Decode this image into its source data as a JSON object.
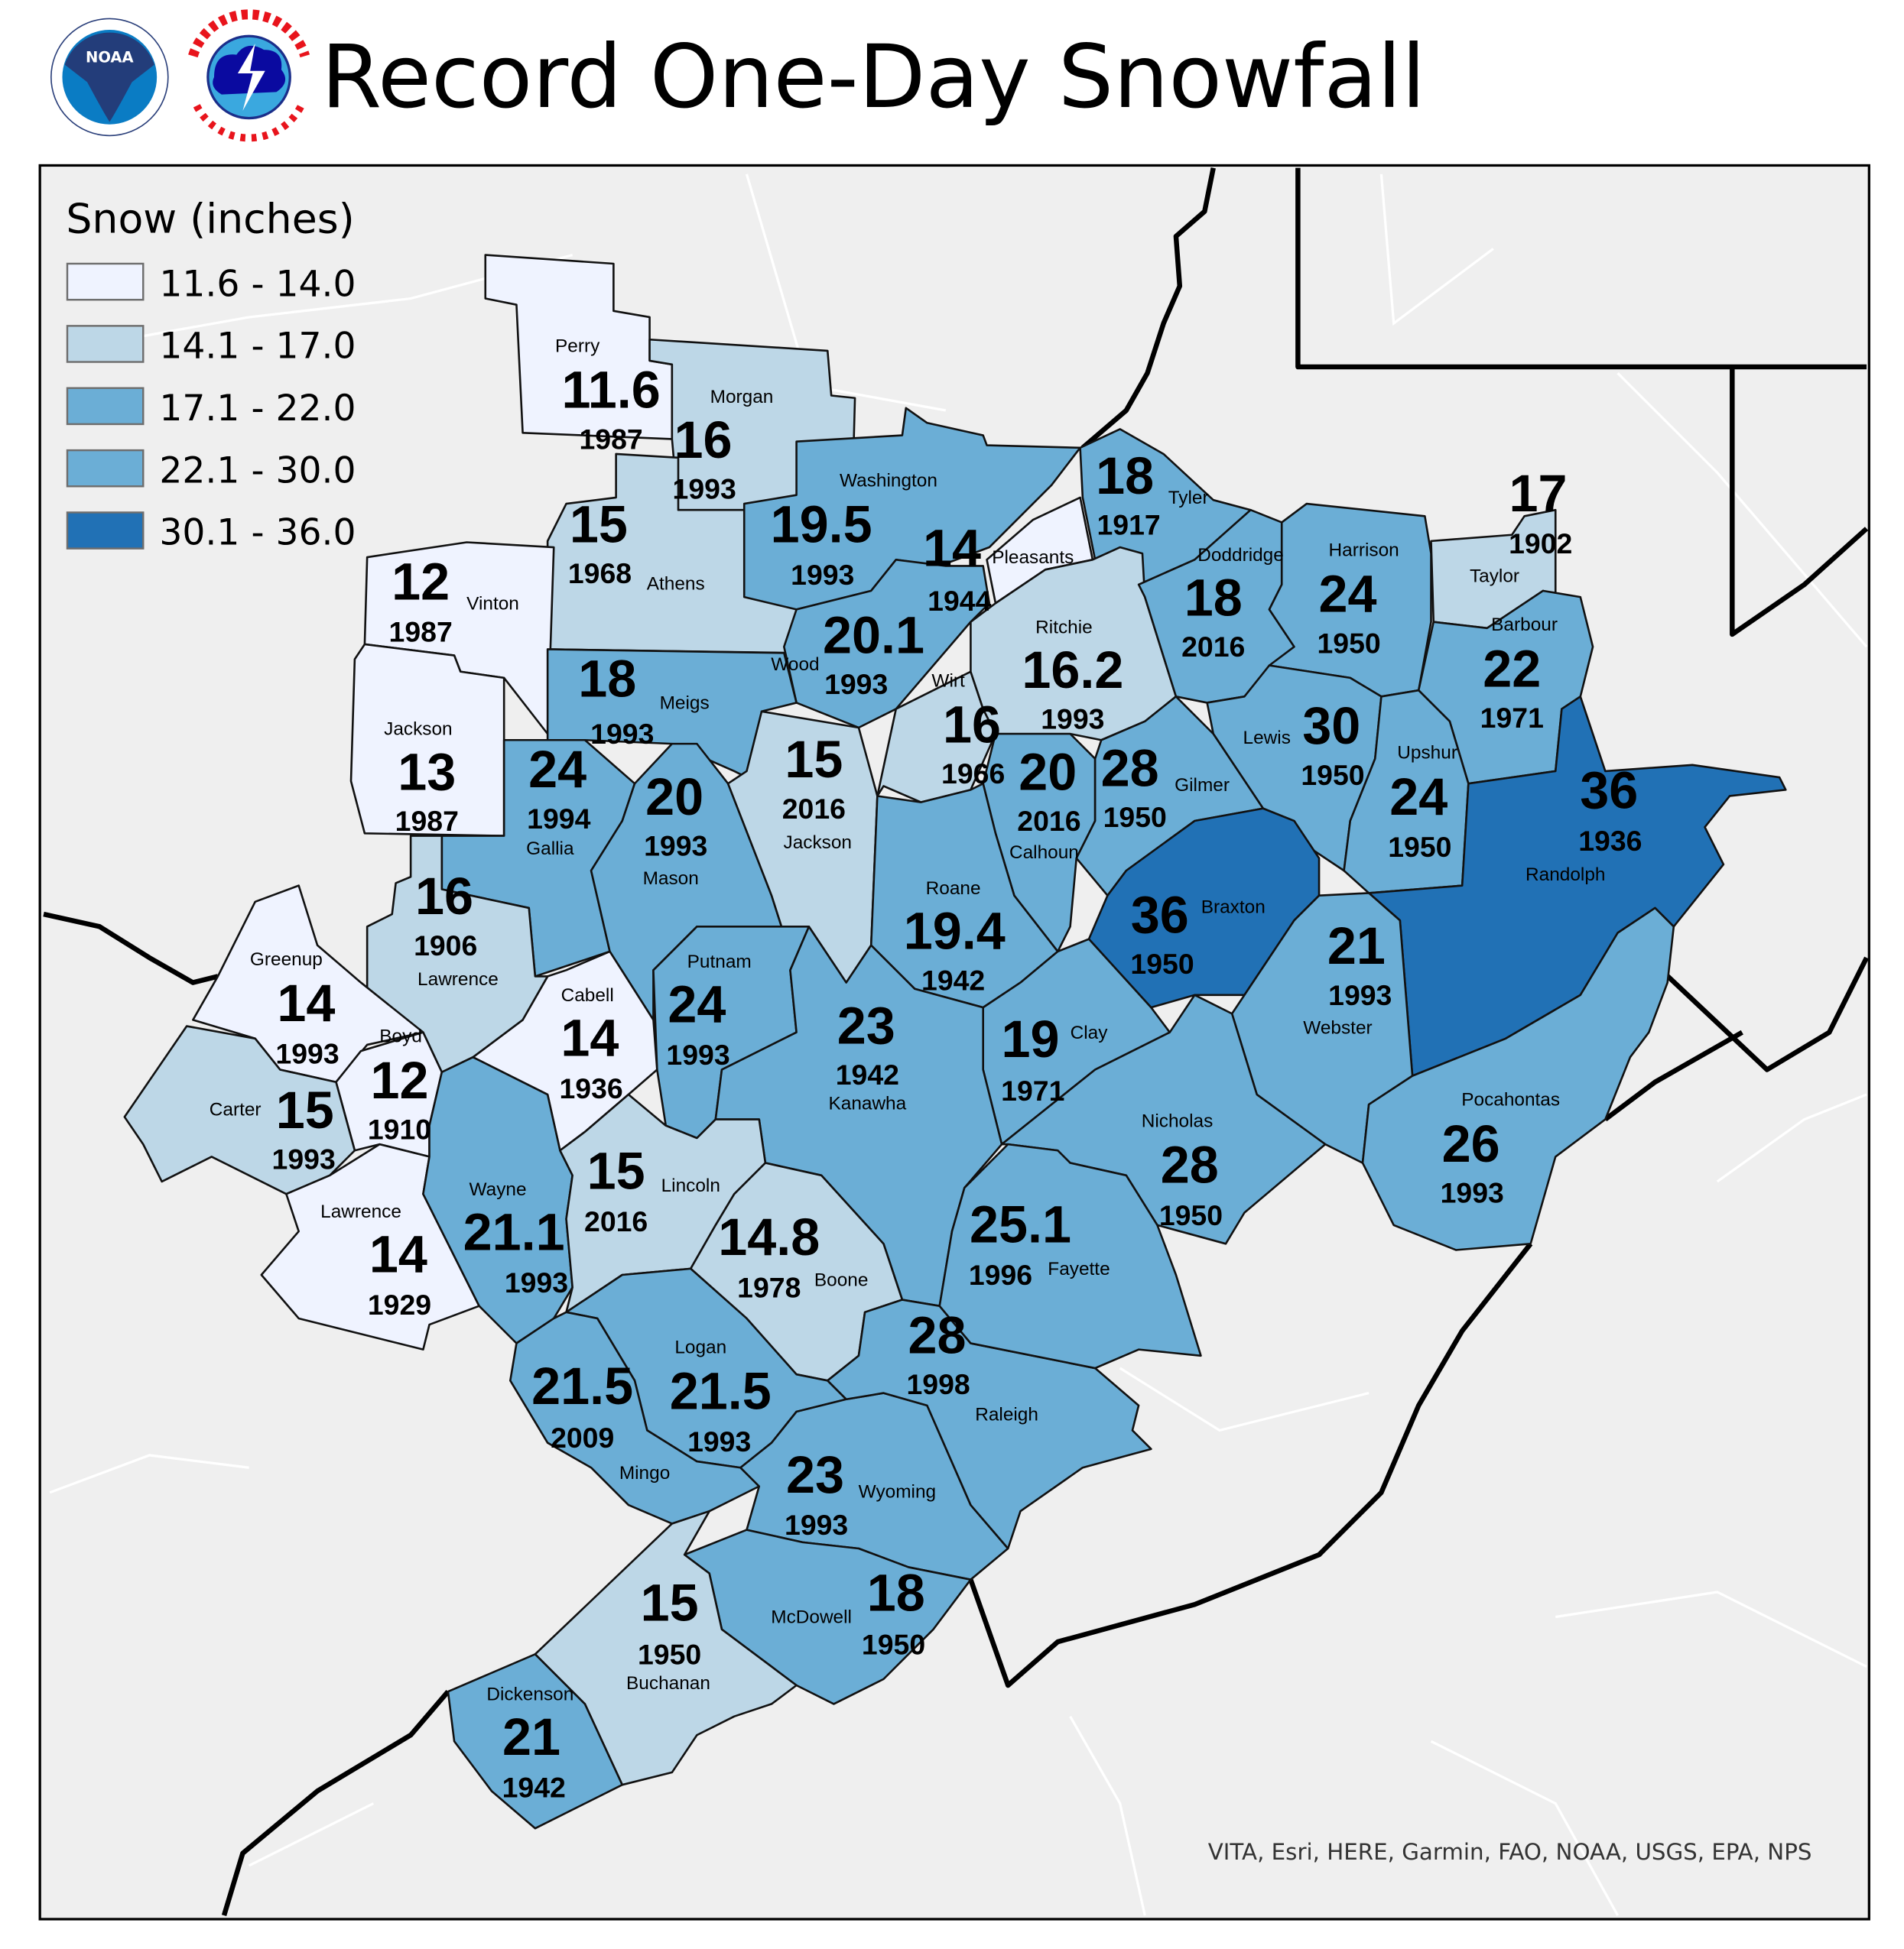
{
  "title": "Record One-Day Snowfall",
  "logos": {
    "noaa": "NOAA",
    "nws": "NATIONAL WEATHER SERVICE"
  },
  "legend": {
    "title": "Snow (inches)",
    "items": [
      {
        "label": "11.6 - 14.0",
        "min": 11.6,
        "max": 14.0,
        "color": "#eff3ff"
      },
      {
        "label": "14.1 - 17.0",
        "min": 14.1,
        "max": 17.0,
        "color": "#bdd7e7"
      },
      {
        "label": "17.1 - 22.0",
        "min": 17.1,
        "max": 22.0,
        "color": "#6baed6"
      },
      {
        "label": "22.1 - 30.0",
        "min": 22.1,
        "max": 30.0,
        "color": "#6baed6"
      },
      {
        "label": "30.1 - 36.0",
        "min": 30.1,
        "max": 36.0,
        "color": "#2171b5"
      }
    ]
  },
  "counties": [
    {
      "name": "Perry",
      "value": "11.6",
      "year": "1987"
    },
    {
      "name": "Morgan",
      "value": "16",
      "year": "1993"
    },
    {
      "name": "Athens",
      "value": "15",
      "year": "1968"
    },
    {
      "name": "Vinton",
      "value": "12",
      "year": "1987"
    },
    {
      "name": "Jackson",
      "value": "13",
      "year": "1987"
    },
    {
      "name": "Washington",
      "value": "19.5",
      "year": "1993"
    },
    {
      "name": "Pleasants",
      "value": "14",
      "year": "1944"
    },
    {
      "name": "Tyler",
      "value": "18",
      "year": "1917"
    },
    {
      "name": "Wood",
      "value": "20.1",
      "year": "1993"
    },
    {
      "name": "Meigs",
      "value": "18",
      "year": "1993"
    },
    {
      "name": "Gallia",
      "value": "24",
      "year": "1994"
    },
    {
      "name": "Mason",
      "value": "20",
      "year": "1993"
    },
    {
      "name": "Jackson",
      "value": "15",
      "year": "2016"
    },
    {
      "name": "Wirt",
      "value": "16",
      "year": "1966"
    },
    {
      "name": "Ritchie",
      "value": "16.2",
      "year": "1993"
    },
    {
      "name": "Doddridge",
      "value": "18",
      "year": "2016"
    },
    {
      "name": "Harrison",
      "value": "24",
      "year": "1950"
    },
    {
      "name": "Taylor",
      "value": "17",
      "year": "1902"
    },
    {
      "name": "Barbour",
      "value": "22",
      "year": "1971"
    },
    {
      "name": "Lewis",
      "value": "30",
      "year": "1950"
    },
    {
      "name": "Upshur",
      "value": "24",
      "year": "1950"
    },
    {
      "name": "Calhoun",
      "value": "20",
      "year": "2016"
    },
    {
      "name": "Gilmer",
      "value": "28",
      "year": "1950"
    },
    {
      "name": "Roane",
      "value": "19.4",
      "year": "1942"
    },
    {
      "name": "Braxton",
      "value": "36",
      "year": "1950"
    },
    {
      "name": "Randolph",
      "value": "36",
      "year": "1936"
    },
    {
      "name": "Webster",
      "value": "21",
      "year": "1993"
    },
    {
      "name": "Pocahontas",
      "value": "26",
      "year": "1993"
    },
    {
      "name": "Clay",
      "value": "19",
      "year": "1971"
    },
    {
      "name": "Nicholas",
      "value": "28",
      "year": "1950"
    },
    {
      "name": "Putnam",
      "value": "24",
      "year": "1993"
    },
    {
      "name": "Kanawha",
      "value": "23",
      "year": "1942"
    },
    {
      "name": "Cabell",
      "value": "14",
      "year": "1936"
    },
    {
      "name": "Lawrence",
      "value": "16",
      "year": "1906"
    },
    {
      "name": "Greenup",
      "value": "14",
      "year": "1993"
    },
    {
      "name": "Boyd",
      "value": "12",
      "year": "1910"
    },
    {
      "name": "Carter",
      "value": "15",
      "year": "1993"
    },
    {
      "name": "Lawrence",
      "value": "14",
      "year": "1929"
    },
    {
      "name": "Wayne",
      "value": "21.1",
      "year": "1993"
    },
    {
      "name": "Lincoln",
      "value": "15",
      "year": "2016"
    },
    {
      "name": "Boone",
      "value": "14.8",
      "year": "1978"
    },
    {
      "name": "Logan",
      "value": "21.5",
      "year": "1993"
    },
    {
      "name": "Mingo",
      "value": "21.5",
      "year": "2009"
    },
    {
      "name": "Wyoming",
      "value": "23",
      "year": "1993"
    },
    {
      "name": "Raleigh",
      "value": "28",
      "year": "1998"
    },
    {
      "name": "Fayette",
      "value": "25.1",
      "year": "1996"
    },
    {
      "name": "McDowell",
      "value": "18",
      "year": "1950"
    },
    {
      "name": "Buchanan",
      "value": "15",
      "year": "1950"
    },
    {
      "name": "Dickenson",
      "value": "21",
      "year": "1942"
    }
  ],
  "attribution": "VITA, Esri, HERE, Garmin, FAO, NOAA, USGS, EPA, NPS"
}
